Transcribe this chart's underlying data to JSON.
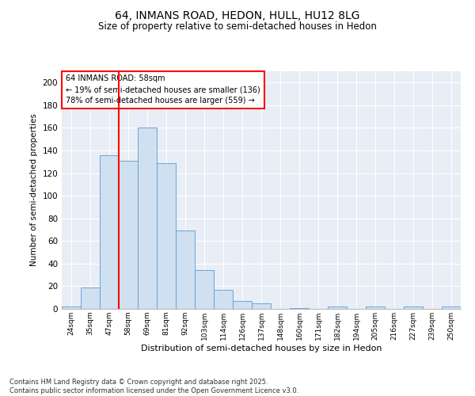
{
  "title_line1": "64, INMANS ROAD, HEDON, HULL, HU12 8LG",
  "title_line2": "Size of property relative to semi-detached houses in Hedon",
  "xlabel": "Distribution of semi-detached houses by size in Hedon",
  "ylabel": "Number of semi-detached properties",
  "bin_labels": [
    "24sqm",
    "35sqm",
    "47sqm",
    "58sqm",
    "69sqm",
    "81sqm",
    "92sqm",
    "103sqm",
    "114sqm",
    "126sqm",
    "137sqm",
    "148sqm",
    "160sqm",
    "171sqm",
    "182sqm",
    "194sqm",
    "205sqm",
    "216sqm",
    "227sqm",
    "239sqm",
    "250sqm"
  ],
  "bar_values": [
    2,
    19,
    136,
    131,
    160,
    129,
    69,
    34,
    17,
    7,
    5,
    0,
    1,
    0,
    2,
    0,
    2,
    0,
    2,
    0,
    2
  ],
  "bar_color": "#cfe0f0",
  "bar_edge_color": "#5b9bd5",
  "vline_color": "red",
  "annotation_title": "64 INMANS ROAD: 58sqm",
  "annotation_line1": "← 19% of semi-detached houses are smaller (136)",
  "annotation_line2": "78% of semi-detached houses are larger (559) →",
  "ylim": [
    0,
    210
  ],
  "yticks": [
    0,
    20,
    40,
    60,
    80,
    100,
    120,
    140,
    160,
    180,
    200
  ],
  "footer_line1": "Contains HM Land Registry data © Crown copyright and database right 2025.",
  "footer_line2": "Contains public sector information licensed under the Open Government Licence v3.0.",
  "background_color": "#e8eef5"
}
